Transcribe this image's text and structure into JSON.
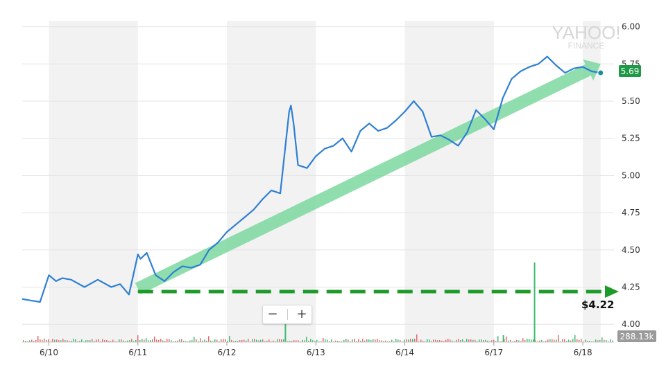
{
  "watermark": {
    "line1": "YAHOO!",
    "line2": "FINANCE"
  },
  "last_price_label": "5.69",
  "volume_label": "288.13k",
  "annotation_label": "$4.22",
  "zoom": {
    "minus": "−",
    "plus": "+"
  },
  "colors": {
    "price_line": "#2d7fd4",
    "trend_arrow": "#7dd8a0",
    "support_line": "#1e9a2a",
    "last_price_bg": "#1e9a46",
    "volume_tag_bg": "#9a9a9a",
    "shade": "#f2f2f2",
    "grid": "#e4e4e4"
  },
  "chart_data": {
    "type": "line",
    "title": "",
    "xlabel": "",
    "ylabel": "",
    "x_ticks": [
      "6/10",
      "6/11",
      "6/12",
      "6/13",
      "6/14",
      "6/17",
      "6/18"
    ],
    "y_ticks": [
      "4.00",
      "4.25",
      "4.50",
      "4.75",
      "5.00",
      "5.25",
      "5.50",
      "5.75",
      "6.00"
    ],
    "ylim": [
      3.88,
      6.04
    ],
    "x_range": [
      0,
      6.65
    ],
    "shaded_sessions": [
      [
        0.3,
        1.3
      ],
      [
        2.3,
        3.3
      ],
      [
        4.3,
        5.3
      ],
      [
        6.3,
        6.5
      ]
    ],
    "grid": true,
    "series": [
      {
        "values_x": [
          0.0,
          0.1,
          0.2,
          0.3,
          0.38,
          0.45,
          0.55,
          0.7,
          0.85,
          1.0,
          1.1,
          1.2,
          1.3,
          1.33,
          1.4,
          1.5,
          1.6,
          1.7,
          1.8,
          1.9,
          2.0,
          2.1,
          2.2,
          2.3,
          2.4,
          2.5,
          2.6,
          2.7,
          2.8,
          2.9,
          3.0,
          3.02,
          3.05,
          3.1,
          3.2,
          3.3,
          3.4,
          3.5,
          3.6,
          3.7,
          3.8,
          3.9,
          4.0,
          4.1,
          4.2,
          4.3,
          4.4,
          4.5,
          4.6,
          4.7,
          4.8,
          4.9,
          5.0,
          5.1,
          5.2,
          5.3,
          5.4,
          5.5,
          5.6,
          5.7,
          5.8,
          5.9,
          6.0,
          6.1,
          6.2,
          6.3,
          6.4,
          6.5
        ],
        "values": [
          4.17,
          4.16,
          4.15,
          4.33,
          4.29,
          4.31,
          4.3,
          4.25,
          4.3,
          4.25,
          4.27,
          4.2,
          4.47,
          4.44,
          4.48,
          4.33,
          4.29,
          4.35,
          4.39,
          4.38,
          4.4,
          4.5,
          4.55,
          4.62,
          4.67,
          4.72,
          4.77,
          4.84,
          4.9,
          4.88,
          5.43,
          5.47,
          5.35,
          5.07,
          5.05,
          5.13,
          5.18,
          5.2,
          5.25,
          5.16,
          5.3,
          5.35,
          5.3,
          5.32,
          5.37,
          5.43,
          5.5,
          5.43,
          5.26,
          5.27,
          5.24,
          5.2,
          5.29,
          5.44,
          5.38,
          5.31,
          5.52,
          5.65,
          5.7,
          5.73,
          5.75,
          5.8,
          5.74,
          5.69,
          5.72,
          5.73,
          5.7,
          5.69
        ]
      }
    ],
    "volume_spikes_x": [
      2.95,
      5.4,
      5.75
    ],
    "trend_arrow": {
      "from": [
        1.3,
        4.24
      ],
      "to": [
        6.5,
        5.75
      ]
    },
    "support_level": 4.22,
    "last_price": 5.69
  }
}
